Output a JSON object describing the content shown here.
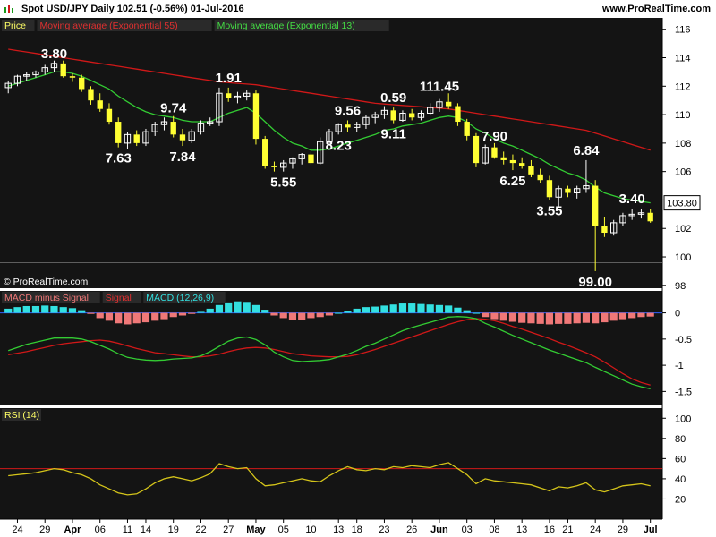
{
  "header": {
    "title": "Spot USD/JPY   Daily   102.51 (-0.56%)   01-Jul-2016",
    "site": "www.ProRealTime.com",
    "watermark": "© ProRealTime.com"
  },
  "colors": {
    "panel_bg": "#141414",
    "up": "#ffffff",
    "down": "#ffff33",
    "ema55": "#d01818",
    "ema13": "#33cc33",
    "macd_pos": "#33e0e0",
    "macd_neg": "#f07878",
    "rsi": "#d4c41a",
    "rsi_level": "#d01818"
  },
  "chart_data": [
    {
      "type": "candlestick",
      "legend": [
        "Price",
        "Moving average (Exponential 55)",
        "Moving average (Exponential 13)"
      ],
      "ylim": [
        97.8,
        116.8
      ],
      "yticks": [
        98,
        100,
        102,
        104,
        106,
        108,
        110,
        112,
        114,
        116
      ],
      "last_price_label": "103.80",
      "x_tick_labels": [
        "24",
        "29",
        "Apr",
        "06",
        "11",
        "14",
        "19",
        "22",
        "27",
        "May",
        "05",
        "10",
        "13",
        "18",
        "23",
        "26",
        "Jun",
        "03",
        "08",
        "13",
        "16",
        "21",
        "24",
        "29",
        "Jul"
      ],
      "candles": [
        [
          111.9,
          112.4,
          111.5,
          112.2
        ],
        [
          112.2,
          112.8,
          112.0,
          112.7
        ],
        [
          112.7,
          113.0,
          112.4,
          112.8
        ],
        [
          112.8,
          113.1,
          112.6,
          113.0
        ],
        [
          113.0,
          113.5,
          112.8,
          113.3
        ],
        [
          113.3,
          113.8,
          113.0,
          113.6
        ],
        [
          113.6,
          113.8,
          112.6,
          112.7
        ],
        [
          112.7,
          112.9,
          112.3,
          112.6
        ],
        [
          112.6,
          112.8,
          111.6,
          111.8
        ],
        [
          111.8,
          112.0,
          110.7,
          111.0
        ],
        [
          111.0,
          111.5,
          110.2,
          110.4
        ],
        [
          110.4,
          110.8,
          109.3,
          109.5
        ],
        [
          109.5,
          109.8,
          107.7,
          108.0
        ],
        [
          108.0,
          108.8,
          107.6,
          108.6
        ],
        [
          108.6,
          108.9,
          107.8,
          108.0
        ],
        [
          108.0,
          109.0,
          107.8,
          108.8
        ],
        [
          108.8,
          109.5,
          108.5,
          109.3
        ],
        [
          109.3,
          109.8,
          108.9,
          109.5
        ],
        [
          109.5,
          109.9,
          108.4,
          108.6
        ],
        [
          108.6,
          109.0,
          107.8,
          108.2
        ],
        [
          108.2,
          109.0,
          108.0,
          108.8
        ],
        [
          108.8,
          109.6,
          108.6,
          109.4
        ],
        [
          109.4,
          109.8,
          109.2,
          109.5
        ],
        [
          109.5,
          111.9,
          109.2,
          111.5
        ],
        [
          111.5,
          111.9,
          110.9,
          111.2
        ],
        [
          111.2,
          111.6,
          110.8,
          111.3
        ],
        [
          111.3,
          111.7,
          111.0,
          111.5
        ],
        [
          111.5,
          111.7,
          107.9,
          108.3
        ],
        [
          108.3,
          108.5,
          106.2,
          106.4
        ],
        [
          106.4,
          106.7,
          106.0,
          106.3
        ],
        [
          106.3,
          106.8,
          106.0,
          106.6
        ],
        [
          106.6,
          107.0,
          106.2,
          106.9
        ],
        [
          106.9,
          107.3,
          106.5,
          107.2
        ],
        [
          107.2,
          107.4,
          106.5,
          106.6
        ],
        [
          106.6,
          108.4,
          106.5,
          108.1
        ],
        [
          108.1,
          109.0,
          107.9,
          108.8
        ],
        [
          108.8,
          109.4,
          108.6,
          109.3
        ],
        [
          109.3,
          109.6,
          108.8,
          109.1
        ],
        [
          109.1,
          109.5,
          108.8,
          109.3
        ],
        [
          109.3,
          110.0,
          109.0,
          109.8
        ],
        [
          109.8,
          110.2,
          109.4,
          110.0
        ],
        [
          110.0,
          110.6,
          109.7,
          110.3
        ],
        [
          110.3,
          110.5,
          109.4,
          109.6
        ],
        [
          109.6,
          110.3,
          109.5,
          110.1
        ],
        [
          110.1,
          110.4,
          109.6,
          109.8
        ],
        [
          109.8,
          110.3,
          109.6,
          110.1
        ],
        [
          110.1,
          110.8,
          110.0,
          110.5
        ],
        [
          110.5,
          111.1,
          110.2,
          110.9
        ],
        [
          110.9,
          111.5,
          110.4,
          110.6
        ],
        [
          110.6,
          110.8,
          109.2,
          109.5
        ],
        [
          109.5,
          109.7,
          108.2,
          108.5
        ],
        [
          108.5,
          108.7,
          106.3,
          106.6
        ],
        [
          106.6,
          107.9,
          106.5,
          107.7
        ],
        [
          107.7,
          108.0,
          106.9,
          107.0
        ],
        [
          107.0,
          107.4,
          106.5,
          106.8
        ],
        [
          106.8,
          107.2,
          106.1,
          106.6
        ],
        [
          106.6,
          107.0,
          106.2,
          106.4
        ],
        [
          106.4,
          106.8,
          105.6,
          105.8
        ],
        [
          105.8,
          106.2,
          105.2,
          105.4
        ],
        [
          105.4,
          105.7,
          104.0,
          104.2
        ],
        [
          104.2,
          105.0,
          103.5,
          104.8
        ],
        [
          104.8,
          105.0,
          104.2,
          104.5
        ],
        [
          104.5,
          105.0,
          104.1,
          104.8
        ],
        [
          104.8,
          106.8,
          104.5,
          105.0
        ],
        [
          105.0,
          105.4,
          99.0,
          102.2
        ],
        [
          102.2,
          102.8,
          101.4,
          101.7
        ],
        [
          101.7,
          102.6,
          101.5,
          102.4
        ],
        [
          102.4,
          103.1,
          102.2,
          102.9
        ],
        [
          102.9,
          103.4,
          102.6,
          103.0
        ],
        [
          103.0,
          103.4,
          102.7,
          103.1
        ],
        [
          103.1,
          103.4,
          102.4,
          102.5
        ]
      ],
      "ema55": [
        114.6,
        114.5,
        114.4,
        114.3,
        114.2,
        114.1,
        114.0,
        113.9,
        113.8,
        113.7,
        113.6,
        113.5,
        113.4,
        113.3,
        113.2,
        113.1,
        113.0,
        112.9,
        112.8,
        112.7,
        112.6,
        112.5,
        112.4,
        112.3,
        112.25,
        112.2,
        112.15,
        112.1,
        112.0,
        111.9,
        111.8,
        111.7,
        111.6,
        111.5,
        111.4,
        111.3,
        111.2,
        111.1,
        111.0,
        110.9,
        110.8,
        110.75,
        110.7,
        110.65,
        110.6,
        110.55,
        110.5,
        110.45,
        110.4,
        110.3,
        110.2,
        110.1,
        110.0,
        109.9,
        109.8,
        109.7,
        109.6,
        109.5,
        109.4,
        109.3,
        109.2,
        109.1,
        109.0,
        108.9,
        108.7,
        108.5,
        108.3,
        108.1,
        107.9,
        107.7,
        107.5
      ],
      "ema13": [
        112.0,
        112.2,
        112.4,
        112.6,
        112.8,
        113.0,
        113.0,
        112.9,
        112.7,
        112.4,
        112.1,
        111.8,
        111.3,
        110.9,
        110.5,
        110.2,
        110.0,
        109.9,
        109.8,
        109.6,
        109.5,
        109.5,
        109.5,
        109.8,
        110.1,
        110.3,
        110.5,
        110.1,
        109.5,
        108.9,
        108.4,
        108.0,
        107.8,
        107.5,
        107.5,
        107.6,
        107.8,
        108.0,
        108.2,
        108.4,
        108.6,
        108.9,
        109.0,
        109.2,
        109.3,
        109.4,
        109.6,
        109.8,
        109.9,
        109.8,
        109.5,
        109.0,
        108.7,
        108.3,
        108.0,
        107.8,
        107.5,
        107.2,
        106.9,
        106.5,
        106.2,
        105.9,
        105.7,
        105.4,
        104.9,
        104.5,
        104.3,
        104.1,
        104.0,
        103.9,
        103.8
      ],
      "annotations": [
        {
          "text": "3.80",
          "i": 5,
          "price": 113.6,
          "pos": "above"
        },
        {
          "text": "7.63",
          "i": 12,
          "price": 107.7,
          "pos": "below"
        },
        {
          "text": "9.74",
          "i": 18,
          "price": 109.8,
          "pos": "above"
        },
        {
          "text": "7.84",
          "i": 19,
          "price": 107.8,
          "pos": "below"
        },
        {
          "text": "1.91",
          "i": 24,
          "price": 111.9,
          "pos": "above"
        },
        {
          "text": "5.55",
          "i": 30,
          "price": 106.0,
          "pos": "below"
        },
        {
          "text": "9.56",
          "i": 37,
          "price": 109.6,
          "pos": "above"
        },
        {
          "text": "8.23",
          "i": 36,
          "price": 108.6,
          "pos": "below"
        },
        {
          "text": "0.59",
          "i": 42,
          "price": 110.5,
          "pos": "above"
        },
        {
          "text": "9.11",
          "i": 42,
          "price": 109.4,
          "pos": "below"
        },
        {
          "text": "111.45",
          "i": 47,
          "price": 111.3,
          "pos": "above"
        },
        {
          "text": "7.90",
          "i": 53,
          "price": 107.8,
          "pos": "above"
        },
        {
          "text": "6.25",
          "i": 55,
          "price": 106.1,
          "pos": "below"
        },
        {
          "text": "3.55",
          "i": 59,
          "price": 104.0,
          "pos": "below"
        },
        {
          "text": "6.84",
          "i": 63,
          "price": 106.8,
          "pos": "above"
        },
        {
          "text": "99.00",
          "i": 64,
          "price": 99.0,
          "pos": "below"
        },
        {
          "text": "3.40",
          "i": 68,
          "price": 103.4,
          "pos": "above"
        }
      ]
    },
    {
      "type": "bar+line",
      "legend": [
        "MACD minus Signal",
        "Signal",
        "MACD (12,26,9)"
      ],
      "ylim": [
        -1.75,
        0.42
      ],
      "yticks": [
        0,
        -0.5,
        -1,
        -1.5
      ],
      "ytick_labels": [
        "0",
        "-0.5",
        "-1",
        "-1.5"
      ],
      "hist": [
        0.08,
        0.11,
        0.13,
        0.13,
        0.14,
        0.13,
        0.11,
        0.09,
        0.05,
        -0.02,
        -0.1,
        -0.15,
        -0.2,
        -0.22,
        -0.2,
        -0.18,
        -0.15,
        -0.12,
        -0.08,
        -0.05,
        -0.02,
        0.02,
        0.08,
        0.15,
        0.2,
        0.22,
        0.21,
        0.15,
        0.06,
        -0.05,
        -0.1,
        -0.13,
        -0.13,
        -0.1,
        -0.08,
        -0.05,
        0.0,
        0.04,
        0.08,
        0.11,
        0.12,
        0.14,
        0.16,
        0.18,
        0.18,
        0.17,
        0.16,
        0.15,
        0.14,
        0.1,
        0.05,
        0.0,
        -0.08,
        -0.12,
        -0.15,
        -0.17,
        -0.19,
        -0.2,
        -0.21,
        -0.22,
        -0.21,
        -0.21,
        -0.2,
        -0.19,
        -0.2,
        -0.18,
        -0.15,
        -0.12,
        -0.1,
        -0.08,
        -0.07
      ],
      "signal": [
        -0.8,
        -0.77,
        -0.74,
        -0.7,
        -0.66,
        -0.62,
        -0.59,
        -0.57,
        -0.55,
        -0.53,
        -0.52,
        -0.54,
        -0.58,
        -0.63,
        -0.68,
        -0.72,
        -0.76,
        -0.78,
        -0.8,
        -0.82,
        -0.84,
        -0.84,
        -0.82,
        -0.79,
        -0.74,
        -0.7,
        -0.67,
        -0.66,
        -0.67,
        -0.7,
        -0.74,
        -0.78,
        -0.8,
        -0.82,
        -0.83,
        -0.84,
        -0.84,
        -0.83,
        -0.8,
        -0.75,
        -0.7,
        -0.64,
        -0.58,
        -0.52,
        -0.46,
        -0.4,
        -0.34,
        -0.28,
        -0.22,
        -0.17,
        -0.13,
        -0.11,
        -0.12,
        -0.15,
        -0.2,
        -0.26,
        -0.31,
        -0.37,
        -0.43,
        -0.49,
        -0.56,
        -0.62,
        -0.69,
        -0.76,
        -0.84,
        -0.94,
        -1.05,
        -1.16,
        -1.26,
        -1.33,
        -1.38
      ],
      "macd": [
        -0.72,
        -0.66,
        -0.6,
        -0.56,
        -0.52,
        -0.48,
        -0.48,
        -0.48,
        -0.5,
        -0.55,
        -0.62,
        -0.69,
        -0.78,
        -0.85,
        -0.88,
        -0.9,
        -0.91,
        -0.9,
        -0.88,
        -0.87,
        -0.86,
        -0.82,
        -0.74,
        -0.64,
        -0.54,
        -0.48,
        -0.46,
        -0.51,
        -0.61,
        -0.75,
        -0.84,
        -0.91,
        -0.93,
        -0.92,
        -0.91,
        -0.89,
        -0.84,
        -0.79,
        -0.72,
        -0.64,
        -0.58,
        -0.5,
        -0.42,
        -0.34,
        -0.28,
        -0.23,
        -0.18,
        -0.13,
        -0.08,
        -0.07,
        -0.08,
        -0.11,
        -0.2,
        -0.27,
        -0.35,
        -0.43,
        -0.5,
        -0.57,
        -0.64,
        -0.71,
        -0.77,
        -0.83,
        -0.89,
        -0.95,
        -1.04,
        -1.12,
        -1.2,
        -1.28,
        -1.36,
        -1.41,
        -1.45
      ]
    },
    {
      "type": "line",
      "legend": [
        "RSI (14)"
      ],
      "ylim": [
        0,
        110
      ],
      "yticks": [
        20,
        40,
        60,
        80,
        100
      ],
      "level": 50,
      "rsi": [
        43,
        44,
        45,
        46,
        48,
        50,
        49,
        46,
        44,
        40,
        34,
        30,
        26,
        24,
        25,
        30,
        36,
        40,
        42,
        40,
        38,
        41,
        45,
        55,
        52,
        50,
        51,
        40,
        33,
        34,
        36,
        38,
        40,
        38,
        37,
        43,
        48,
        52,
        49,
        48,
        50,
        49,
        52,
        51,
        53,
        52,
        51,
        54,
        56,
        50,
        44,
        35,
        40,
        38,
        37,
        36,
        35,
        34,
        31,
        28,
        32,
        31,
        33,
        36,
        29,
        27,
        30,
        33,
        34,
        35,
        33
      ]
    }
  ]
}
